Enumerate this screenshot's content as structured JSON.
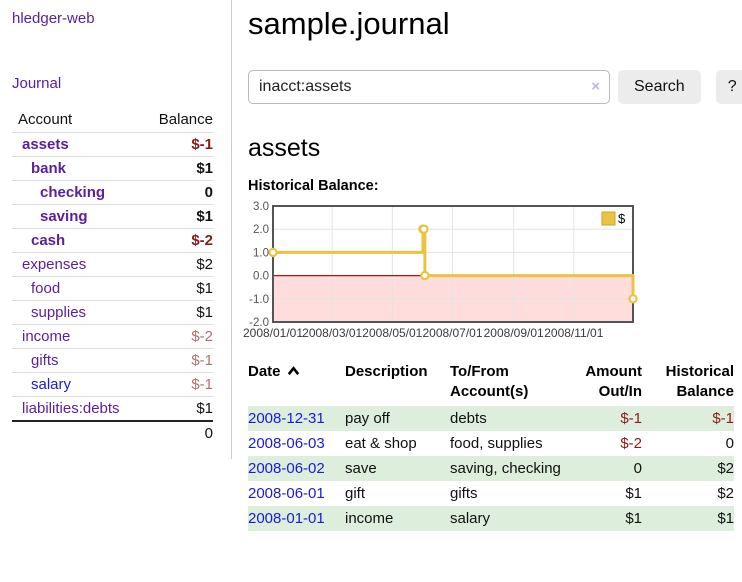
{
  "app": {
    "brand": "hledger-web",
    "nav_journal": "Journal"
  },
  "colors": {
    "link_purple": "#5a1e9e",
    "link_blue": "#1a1ad6",
    "negative_strong": "#8b1a1a",
    "negative_light": "#b47070",
    "row_stripe_green": "#ddeedd",
    "series_gold": "#edc240",
    "negative_region_pink": "#ffdddd",
    "zero_line_red": "#a01818",
    "axis_gray": "#545454"
  },
  "sidebar": {
    "headers": {
      "account": "Account",
      "balance": "Balance"
    },
    "rows": [
      {
        "label": "assets",
        "balance": "$-1",
        "depth": 1,
        "bold": true,
        "neg": "strong"
      },
      {
        "label": "bank",
        "balance": "$1",
        "depth": 2,
        "bold": true
      },
      {
        "label": "checking",
        "balance": "0",
        "depth": 3,
        "bold": true
      },
      {
        "label": "saving",
        "balance": "$1",
        "depth": 3,
        "bold": true
      },
      {
        "label": "cash",
        "balance": "$-2",
        "depth": 2,
        "bold": true,
        "neg": "strong"
      },
      {
        "label": "expenses",
        "balance": "$2",
        "depth": 1
      },
      {
        "label": "food",
        "balance": "$1",
        "depth": 2
      },
      {
        "label": "supplies",
        "balance": "$1",
        "depth": 2
      },
      {
        "label": "income",
        "balance": "$-2",
        "depth": 1,
        "neg": "light"
      },
      {
        "label": "gifts",
        "balance": "$-1",
        "depth": 2,
        "neg": "light"
      },
      {
        "label": "salary",
        "balance": "$-1",
        "depth": 2,
        "neg": "light",
        "blue": true
      },
      {
        "label": "liabilities:debts",
        "balance": "$1",
        "depth": 1
      }
    ],
    "total": "0"
  },
  "main": {
    "title": "sample.journal",
    "search": {
      "value": "inacct:assets",
      "clear_icon": "×",
      "search_button": "Search",
      "help_button": "?"
    },
    "account_heading": "assets"
  },
  "chart_data": {
    "type": "line",
    "step": true,
    "title": "Historical Balance:",
    "legend": [
      {
        "label": "$",
        "color": "#edc240"
      }
    ],
    "legend_position": "top-right",
    "grid": true,
    "ylim": [
      -2,
      3
    ],
    "y_ticks": [
      "3.0",
      "2.0",
      "1.0",
      "0.0",
      "-1.0",
      "-2.0"
    ],
    "y_tick_values": [
      3,
      2,
      1,
      0,
      -1,
      -2
    ],
    "x_range_days": 365,
    "x_ticks": [
      {
        "label": "2008/01/01",
        "day": 0
      },
      {
        "label": "2008/03/01",
        "day": 60
      },
      {
        "label": "2008/05/01",
        "day": 121
      },
      {
        "label": "2008/07/01",
        "day": 182
      },
      {
        "label": "2008/09/01",
        "day": 244
      },
      {
        "label": "2008/11/01",
        "day": 305
      }
    ],
    "series": [
      {
        "name": "$",
        "color": "#edc240",
        "points": [
          {
            "date": "2008-01-01",
            "day": 0,
            "value": 1
          },
          {
            "date": "2008-06-01",
            "day": 152,
            "value": 2
          },
          {
            "date": "2008-06-02",
            "day": 153,
            "value": 2
          },
          {
            "date": "2008-06-03",
            "day": 154,
            "value": 0
          },
          {
            "date": "2008-12-31",
            "day": 365,
            "value": -1
          }
        ]
      }
    ],
    "negative_region_shaded": true
  },
  "register": {
    "headers": {
      "date": "Date",
      "description": "Description",
      "accounts": "To/From Account(s)",
      "amount": "Amount Out/In",
      "balance": "Historical Balance"
    },
    "rows": [
      {
        "date": "2008-12-31",
        "description": "pay off",
        "accounts": "debts",
        "amount": "$-1",
        "amount_neg": true,
        "balance": "$-1",
        "balance_neg": true
      },
      {
        "date": "2008-06-03",
        "description": "eat & shop",
        "accounts": "food, supplies",
        "amount": "$-2",
        "amount_neg": true,
        "balance": "0"
      },
      {
        "date": "2008-06-02",
        "description": "save",
        "accounts": "saving, checking",
        "amount": "0",
        "balance": "$2"
      },
      {
        "date": "2008-06-01",
        "description": "gift",
        "accounts": "gifts",
        "amount": "$1",
        "balance": "$2"
      },
      {
        "date": "2008-01-01",
        "description": "income",
        "accounts": "salary",
        "amount": "$1",
        "balance": "$1"
      }
    ]
  }
}
